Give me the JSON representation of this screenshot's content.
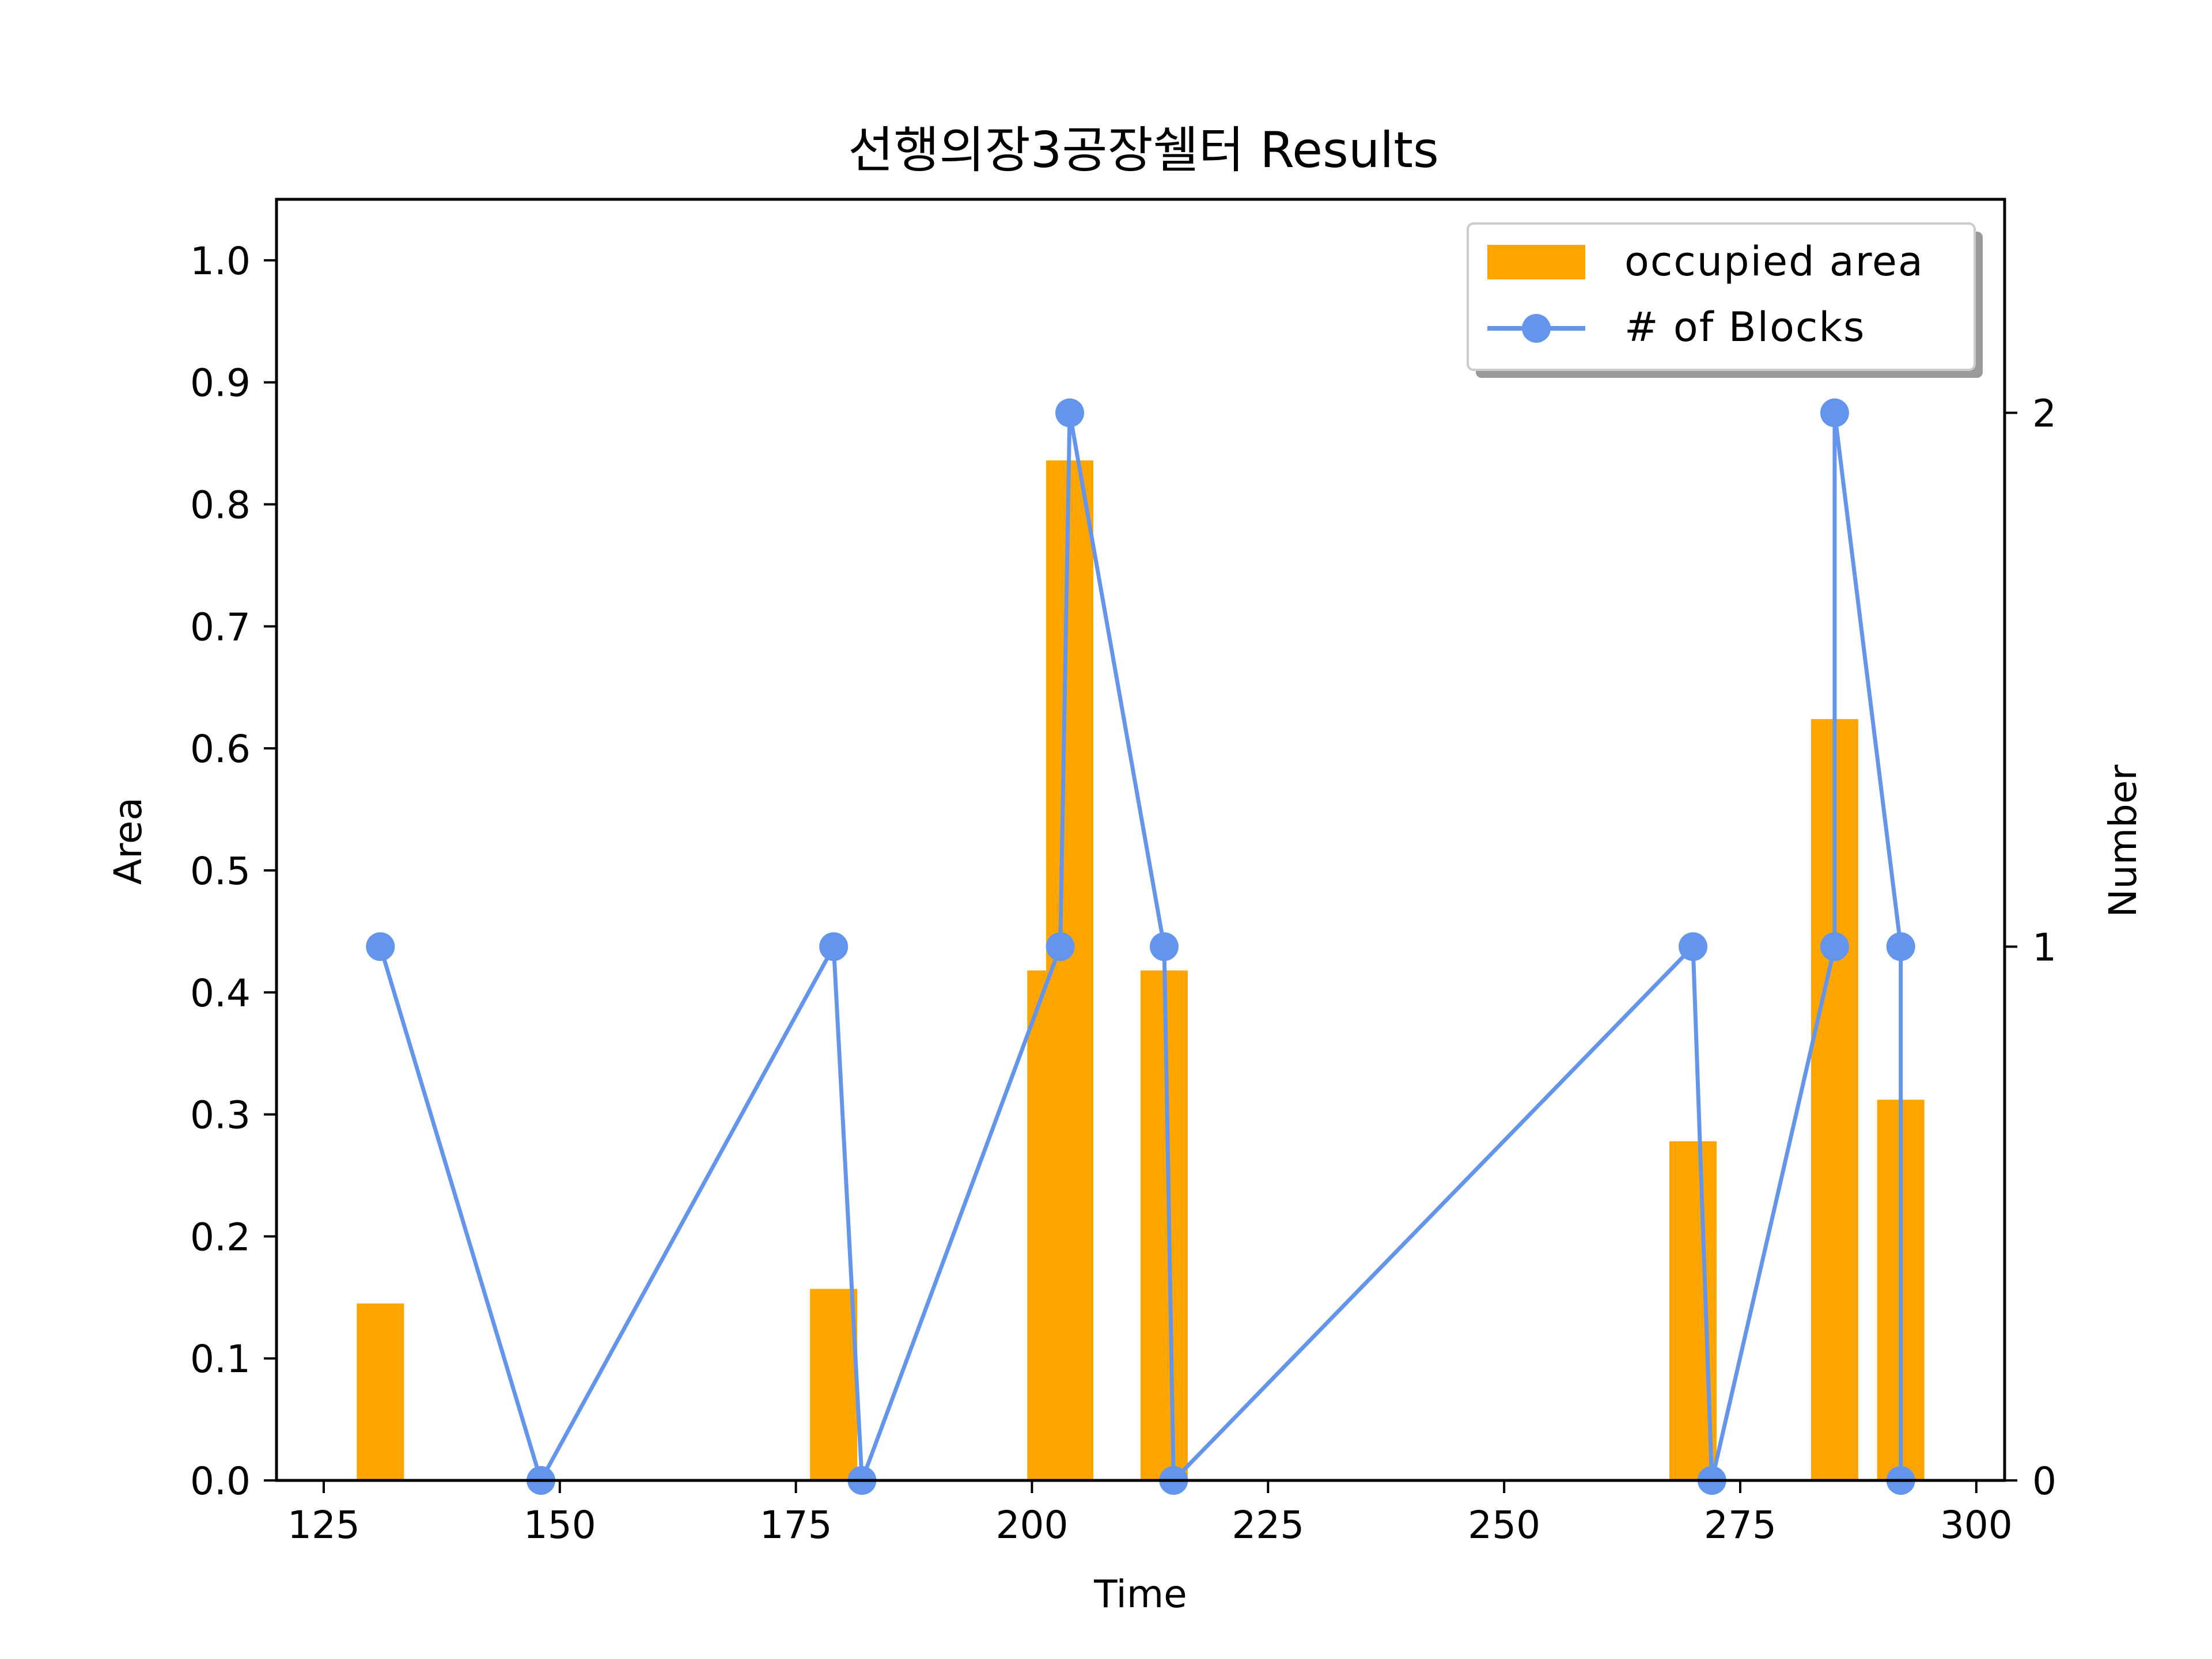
{
  "chart_data": {
    "type": "bar+line",
    "title": "선행의장3공장쉘터 Results",
    "xlabel": "Time",
    "ylabel_left": "Area",
    "ylabel_right": "Number",
    "xlim": [
      120,
      303
    ],
    "ylim_left": [
      0,
      1.05
    ],
    "ylim_right": [
      0,
      2.4
    ],
    "xticks": [
      125,
      150,
      175,
      200,
      225,
      250,
      275,
      300
    ],
    "yticks_left": [
      "0.0",
      "0.1",
      "0.2",
      "0.3",
      "0.4",
      "0.5",
      "0.6",
      "0.7",
      "0.8",
      "0.9",
      "1.0"
    ],
    "yticks_right": [
      "0",
      "1",
      "2"
    ],
    "grid": false,
    "legend_position": "top-right",
    "bars": {
      "name": "occupied area",
      "color": "#FFA500",
      "width": 5,
      "x": [
        131,
        179,
        202,
        204,
        214,
        270,
        285,
        292
      ],
      "values": [
        0.145,
        0.157,
        0.418,
        0.836,
        0.418,
        0.278,
        0.624,
        0.312
      ]
    },
    "line": {
      "name": "# of Blocks",
      "color": "#6495ED",
      "x": [
        131,
        148,
        179,
        182,
        203,
        204,
        214,
        215,
        270,
        272,
        285,
        285,
        292,
        292
      ],
      "values": [
        1,
        0,
        1,
        0,
        1,
        2,
        1,
        0,
        1,
        0,
        1,
        2,
        1,
        0
      ]
    }
  }
}
